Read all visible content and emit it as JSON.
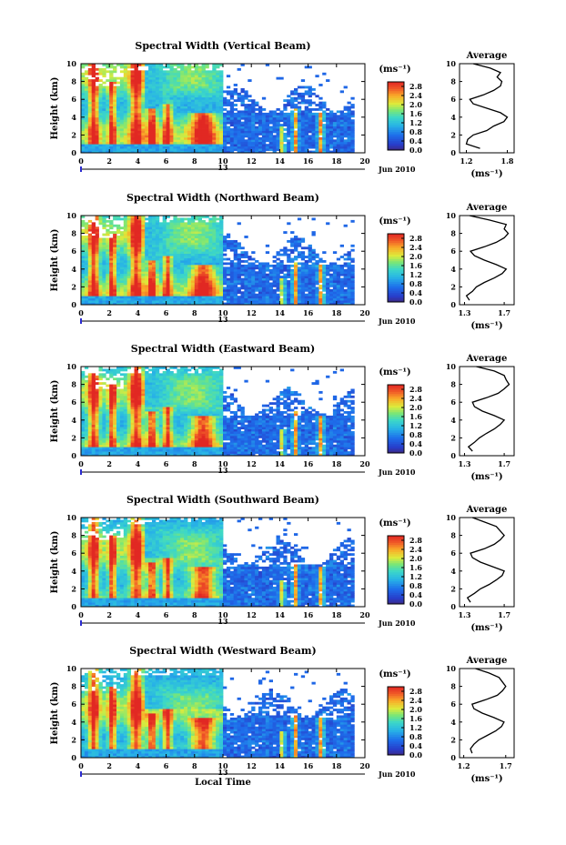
{
  "chart_data": [
    {
      "type": "heatmap",
      "title": "Spectral Width (Vertical Beam)",
      "ylabel": "Height (km)",
      "xticks": [
        "0",
        "2",
        "4",
        "6",
        "8",
        "10",
        "12",
        "14",
        "16",
        "18",
        "20"
      ],
      "xlim": [
        0,
        20
      ],
      "yticks": [
        "0",
        "2",
        "4",
        "6",
        "8",
        "10"
      ],
      "ylim": [
        0,
        10
      ],
      "day_label": "13",
      "date_label": "Jun 2010",
      "colorbar": {
        "unit": "(ms⁻¹)",
        "ticks": [
          "0.0",
          "0.4",
          "0.8",
          "1.2",
          "1.6",
          "2.0",
          "2.4",
          "2.8"
        ],
        "range": [
          0,
          3.0
        ]
      },
      "average": {
        "title": "Average",
        "xlabel": "(ms⁻¹)",
        "xticks": [
          "1.2",
          "1.8"
        ],
        "xlim": [
          1.1,
          1.9
        ],
        "heights": [
          0.5,
          1,
          1.5,
          2,
          2.5,
          3,
          3.5,
          4,
          4.5,
          5,
          5.5,
          6,
          6.5,
          7,
          7.5,
          8,
          8.5,
          9,
          9.5,
          10
        ],
        "values": [
          1.4,
          1.2,
          1.22,
          1.3,
          1.5,
          1.6,
          1.75,
          1.8,
          1.7,
          1.5,
          1.3,
          1.25,
          1.45,
          1.6,
          1.7,
          1.72,
          1.65,
          1.7,
          1.55,
          1.3
        ]
      }
    },
    {
      "type": "heatmap",
      "title": "Spectral Width (Northward Beam)",
      "ylabel": "Height (km)",
      "xticks": [
        "0",
        "2",
        "4",
        "6",
        "8",
        "10",
        "12",
        "14",
        "16",
        "18",
        "20"
      ],
      "xlim": [
        0,
        20
      ],
      "yticks": [
        "0",
        "2",
        "4",
        "6",
        "8",
        "10"
      ],
      "ylim": [
        0,
        10
      ],
      "day_label": "13",
      "date_label": "Jun 2010",
      "colorbar": {
        "unit": "(ms⁻¹)",
        "ticks": [
          "0.0",
          "0.4",
          "0.8",
          "1.2",
          "1.6",
          "2.0",
          "2.4",
          "2.8"
        ],
        "range": [
          0,
          3.0
        ]
      },
      "average": {
        "title": "Average",
        "xlabel": "(ms⁻¹)",
        "xticks": [
          "1.3",
          "1.7"
        ],
        "xlim": [
          1.25,
          1.8
        ],
        "heights": [
          0.5,
          1,
          1.5,
          2,
          2.5,
          3,
          3.5,
          4,
          4.5,
          5,
          5.5,
          6,
          6.5,
          7,
          7.5,
          8,
          8.5,
          9,
          9.5,
          10
        ],
        "values": [
          1.35,
          1.32,
          1.38,
          1.42,
          1.5,
          1.6,
          1.68,
          1.72,
          1.62,
          1.5,
          1.4,
          1.36,
          1.5,
          1.62,
          1.7,
          1.74,
          1.7,
          1.72,
          1.55,
          1.35
        ]
      }
    },
    {
      "type": "heatmap",
      "title": "Spectral Width (Eastward Beam)",
      "ylabel": "Height (km)",
      "xticks": [
        "0",
        "2",
        "4",
        "6",
        "8",
        "10",
        "12",
        "14",
        "16",
        "18",
        "20"
      ],
      "xlim": [
        0,
        20
      ],
      "yticks": [
        "0",
        "2",
        "4",
        "6",
        "8",
        "10"
      ],
      "ylim": [
        0,
        10
      ],
      "day_label": "13",
      "date_label": "Jun 2010",
      "colorbar": {
        "unit": "(ms⁻¹)",
        "ticks": [
          "0.0",
          "0.4",
          "0.8",
          "1.2",
          "1.6",
          "2.0",
          "2.4",
          "2.8"
        ],
        "range": [
          0,
          3.0
        ]
      },
      "average": {
        "title": "Average",
        "xlabel": "(ms⁻¹)",
        "xticks": [
          "1.3",
          "1.7"
        ],
        "xlim": [
          1.25,
          1.8
        ],
        "heights": [
          0.5,
          1,
          1.5,
          2,
          2.5,
          3,
          3.5,
          4,
          4.5,
          5,
          5.5,
          6,
          6.5,
          7,
          7.5,
          8,
          8.5,
          9,
          9.5,
          10
        ],
        "values": [
          1.38,
          1.34,
          1.4,
          1.45,
          1.52,
          1.6,
          1.66,
          1.7,
          1.6,
          1.48,
          1.4,
          1.38,
          1.52,
          1.64,
          1.7,
          1.75,
          1.72,
          1.7,
          1.6,
          1.42
        ]
      }
    },
    {
      "type": "heatmap",
      "title": "Spectral Width (Southward Beam)",
      "ylabel": "Height (km)",
      "xticks": [
        "0",
        "2",
        "4",
        "6",
        "8",
        "10",
        "12",
        "14",
        "16",
        "18",
        "20"
      ],
      "xlim": [
        0,
        20
      ],
      "yticks": [
        "0",
        "2",
        "4",
        "6",
        "8",
        "10"
      ],
      "ylim": [
        0,
        10
      ],
      "day_label": "13",
      "date_label": "Jun 2010",
      "colorbar": {
        "unit": "(ms⁻¹)",
        "ticks": [
          "0.0",
          "0.4",
          "0.8",
          "1.2",
          "1.6",
          "2.0",
          "2.4",
          "2.8"
        ],
        "range": [
          0,
          3.0
        ]
      },
      "average": {
        "title": "Average",
        "xlabel": "(ms⁻¹)",
        "xticks": [
          "1.3",
          "1.7"
        ],
        "xlim": [
          1.25,
          1.8
        ],
        "heights": [
          0.5,
          1,
          1.5,
          2,
          2.5,
          3,
          3.5,
          4,
          4.5,
          5,
          5.5,
          6,
          6.5,
          7,
          7.5,
          8,
          8.5,
          9,
          9.5,
          10
        ],
        "values": [
          1.36,
          1.33,
          1.4,
          1.46,
          1.55,
          1.62,
          1.68,
          1.7,
          1.58,
          1.46,
          1.38,
          1.36,
          1.5,
          1.6,
          1.66,
          1.7,
          1.66,
          1.62,
          1.5,
          1.38
        ]
      }
    },
    {
      "type": "heatmap",
      "title": "Spectral Width (Westward Beam)",
      "ylabel": "Height (km)",
      "xlabel": "Local Time",
      "xticks": [
        "0",
        "2",
        "4",
        "6",
        "8",
        "10",
        "12",
        "14",
        "16",
        "18",
        "20"
      ],
      "xlim": [
        0,
        20
      ],
      "yticks": [
        "0",
        "2",
        "4",
        "6",
        "8",
        "10"
      ],
      "ylim": [
        0,
        10
      ],
      "day_label": "13",
      "date_label": "Jun 2010",
      "colorbar": {
        "unit": "(ms⁻¹)",
        "ticks": [
          "0.0",
          "0.4",
          "0.8",
          "1.2",
          "1.6",
          "2.0",
          "2.4",
          "2.8"
        ],
        "range": [
          0,
          3.0
        ]
      },
      "average": {
        "title": "Average",
        "xlabel": "(ms⁻¹)",
        "xticks": [
          "1.2",
          "1.7"
        ],
        "xlim": [
          1.15,
          1.8
        ],
        "heights": [
          0.5,
          1,
          1.5,
          2,
          2.5,
          3,
          3.5,
          4,
          4.5,
          5,
          5.5,
          6,
          6.5,
          7,
          7.5,
          8,
          8.5,
          9,
          9.5,
          10
        ],
        "values": [
          1.3,
          1.28,
          1.32,
          1.38,
          1.48,
          1.58,
          1.65,
          1.68,
          1.56,
          1.42,
          1.32,
          1.3,
          1.46,
          1.6,
          1.66,
          1.7,
          1.66,
          1.62,
          1.5,
          1.34
        ]
      }
    }
  ]
}
